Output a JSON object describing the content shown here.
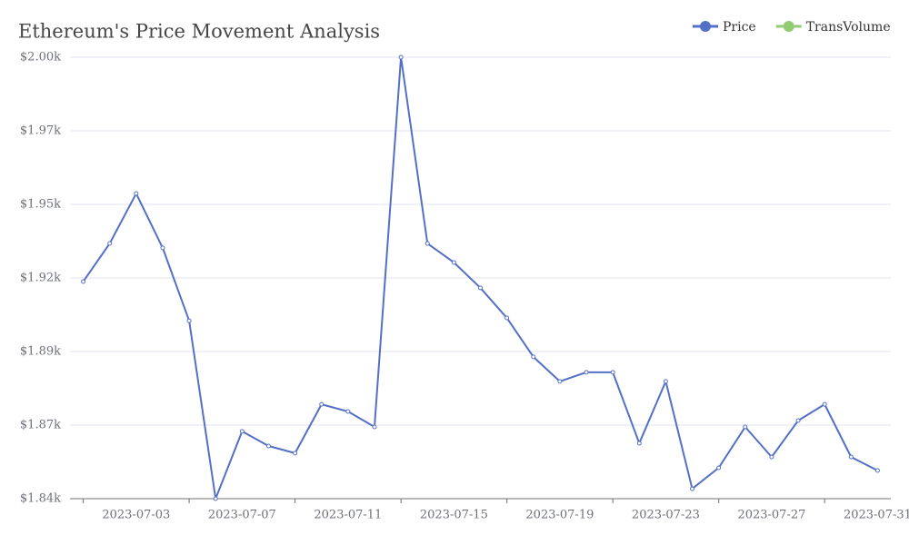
{
  "chart_data": {
    "type": "line",
    "title": "Ethereum's Price Movement Analysis",
    "categories": [
      null,
      null,
      "2023-07-03",
      null,
      null,
      null,
      "2023-07-07",
      null,
      null,
      null,
      "2023-07-11",
      null,
      null,
      null,
      "2023-07-15",
      null,
      null,
      null,
      "2023-07-19",
      null,
      null,
      null,
      "2023-07-23",
      null,
      null,
      null,
      "2023-07-27",
      null,
      null,
      null,
      "2023-07-31"
    ],
    "series": [
      {
        "name": "Price",
        "color": "#5470c6",
        "values": [
          1918.7,
          1932.5,
          1950.6,
          1930.9,
          1904.5,
          1840,
          1864.4,
          1859.1,
          1856.5,
          1874.2,
          1871.6,
          1866,
          2000,
          1932.5,
          1925.6,
          1916.4,
          1905.5,
          1891.4,
          1882.5,
          1885.8,
          1885.8,
          1860.1,
          1882.5,
          1843.6,
          1851.2,
          1866,
          1855.1,
          1868.3,
          1874.2,
          1855.1,
          1850.2
        ]
      },
      {
        "name": "TransVolume",
        "color": "#91cc75",
        "values": [
          null,
          null,
          null,
          null,
          null,
          null,
          null,
          null,
          null,
          null,
          null,
          null,
          null,
          null,
          null,
          null,
          null,
          null,
          null,
          null,
          null,
          null,
          null,
          null,
          null,
          null,
          null,
          null,
          null,
          null,
          null
        ]
      }
    ],
    "ylim": [
      1840,
      2000
    ],
    "yticks": [
      {
        "value": 1840,
        "label": "$1.84k"
      },
      {
        "value": 1866.67,
        "label": "$1.87k"
      },
      {
        "value": 1893.33,
        "label": "$1.89k"
      },
      {
        "value": 1920,
        "label": "$1.92k"
      },
      {
        "value": 1946.67,
        "label": "$1.95k"
      },
      {
        "value": 1973.33,
        "label": "$1.97k"
      },
      {
        "value": 2000,
        "label": "$2.00k"
      }
    ],
    "grid": true
  }
}
